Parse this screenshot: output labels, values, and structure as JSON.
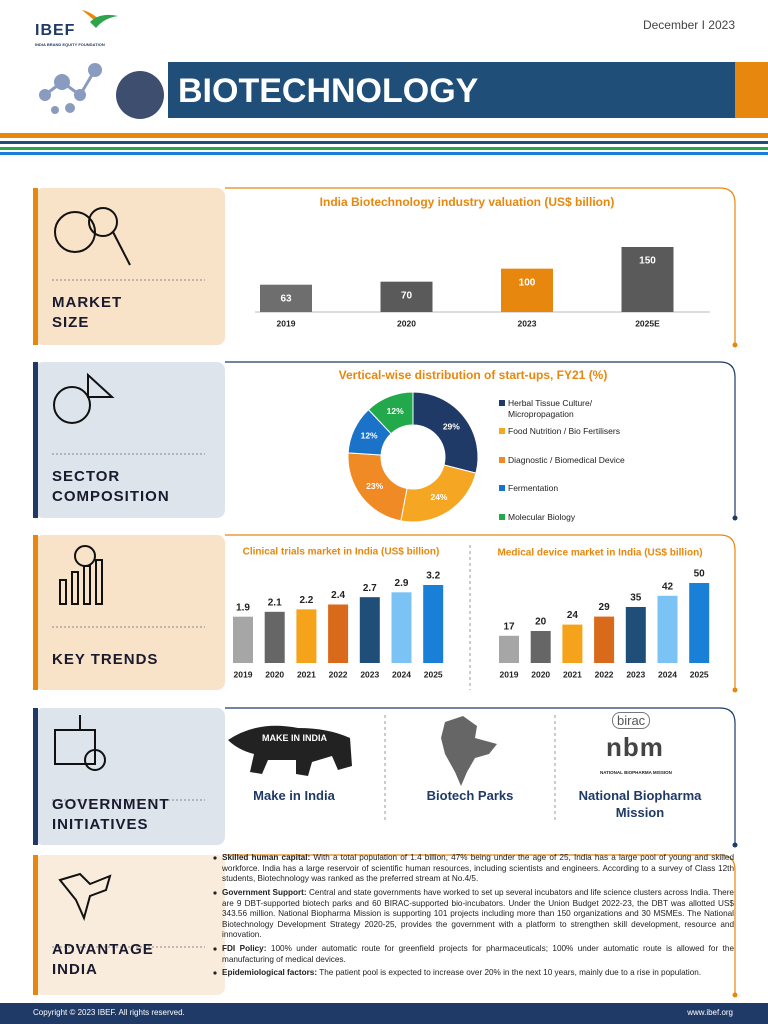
{
  "header": {
    "logo": "IBEF",
    "logo_sub": "INDIA BRAND EQUITY FOUNDATION",
    "date": "December I 2023",
    "title": "BIOTECHNOLOGY"
  },
  "sections": [
    {
      "label": [
        "MARKET",
        "SIZE"
      ]
    },
    {
      "label": [
        "SECTOR",
        "COMPOSITION"
      ]
    },
    {
      "label": [
        "KEY TRENDS"
      ]
    },
    {
      "label": [
        "GOVERNMENT",
        "INITIATIVES"
      ]
    },
    {
      "label": [
        "ADVANTAGE",
        "INDIA"
      ]
    }
  ],
  "chart_data": [
    {
      "type": "bar",
      "title": "India Biotechnology industry valuation (US$ billion)",
      "categories": [
        "2019",
        "2020",
        "2023",
        "2025E"
      ],
      "values": [
        63,
        70,
        100,
        150
      ],
      "colors": [
        "#6e6e6e",
        "#5a5a5a",
        "#e8870e",
        "#5a5a5a"
      ]
    },
    {
      "type": "doughnut",
      "title": "Vertical-wise distribution of start-ups, FY21 (%)",
      "categories": [
        "Herbal Tissue Culture/ Micropropagation",
        "Food Nutrition / Bio Fertilisers",
        "Diagnostic / Biomedical Device",
        "Fermentation",
        "Molecular Biology"
      ],
      "values": [
        29,
        24,
        23,
        12,
        12
      ],
      "value_labels": [
        "29%",
        "24%",
        "23%",
        "12%",
        "12%"
      ],
      "colors": [
        "#1f3a66",
        "#f5a623",
        "#f08a24",
        "#1a73c9",
        "#22a94b"
      ]
    },
    {
      "type": "bar",
      "title": "Clinical trials market in India (US$ billion)",
      "categories": [
        "2019",
        "2020",
        "2021",
        "2022",
        "2023",
        "2024",
        "2025"
      ],
      "values": [
        1.9,
        2.1,
        2.2,
        2.4,
        2.7,
        2.9,
        3.2
      ],
      "colors": [
        "#a6a6a6",
        "#666666",
        "#f5a31a",
        "#d9691b",
        "#1f4e79",
        "#7cc3f5",
        "#1a7fd6"
      ]
    },
    {
      "type": "bar",
      "title": "Medical device market in India (US$ billion)",
      "categories": [
        "2019",
        "2020",
        "2021",
        "2022",
        "2023",
        "2024",
        "2025"
      ],
      "values": [
        17,
        20,
        24,
        29,
        35,
        42,
        50
      ],
      "colors": [
        "#a6a6a6",
        "#666666",
        "#f5a31a",
        "#d9691b",
        "#1f4e79",
        "#7cc3f5",
        "#1a7fd6"
      ]
    }
  ],
  "initiatives": [
    {
      "label": "Make in India",
      "logo": "MAKE IN INDIA"
    },
    {
      "label": "Biotech Parks"
    },
    {
      "label": "National Biopharma Mission",
      "logo": "birac",
      "logo2": "nbm",
      "logo3": "NATIONAL BIOPHARMA MISSION"
    }
  ],
  "advantages": [
    {
      "lead": "Skilled human capital:",
      "text": "With a total population of 1.4 billion, 47% being under the age of 25, India has a large pool of young and skilled workforce. India has a large reservoir of scientific human resources, including scientists and engineers. According to a survey of Class 12th students, Biotechnology was ranked as the preferred stream at No.4/5."
    },
    {
      "lead": "Government Support:",
      "text": "Central and state governments have worked to set up several incubators and life science clusters across India. There are 9 DBT-supported biotech parks and 60 BIRAC-supported bio-incubators. Under the Union Budget 2022-23, the DBT was allotted US$ 343.56 million. National Biopharma Mission is supporting 101 projects including more than 150 organizations and 30 MSMEs. The National Biotechnology Development Strategy 2020-25, provides the government with a platform to strengthen skill development, resource and innovation."
    },
    {
      "lead": "FDI Policy:",
      "text": "100% under automatic route for greenfield projects for pharmaceuticals; 100% under automatic route is allowed for the manufacturing of medical devices."
    },
    {
      "lead": "Epidemiological factors:",
      "text": "The patient pool is expected to increase over 20% in the next 10 years, mainly due to a rise in population."
    }
  ],
  "footer": {
    "copyright": "Copyright © 2023 IBEF. All rights reserved.",
    "url": "www.ibef.org"
  }
}
